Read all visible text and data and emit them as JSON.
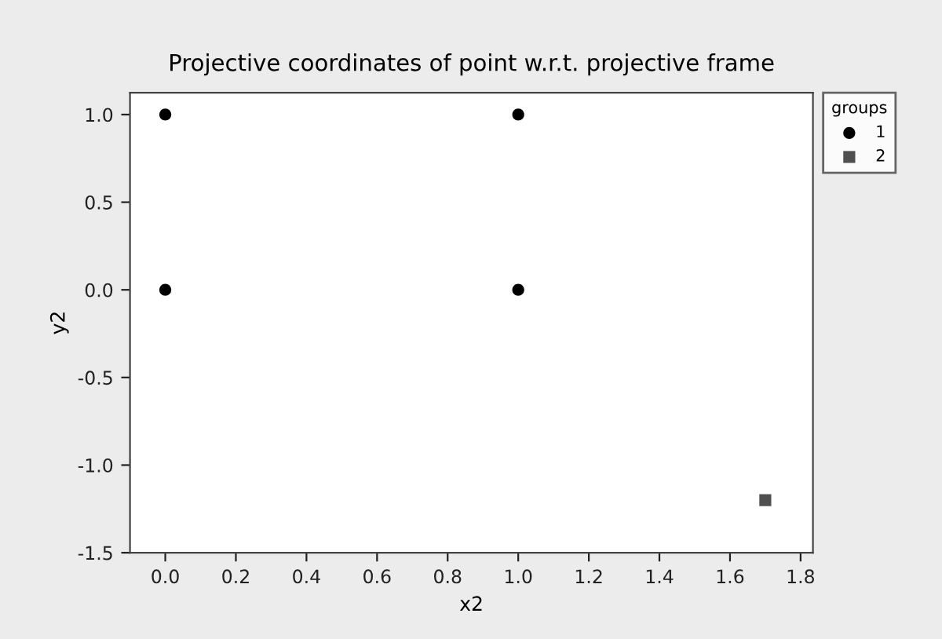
{
  "chart_data": {
    "type": "scatter",
    "title": "Projective coordinates of point w.r.t. projective frame",
    "xlabel": "x2",
    "ylabel": "y2",
    "legend_title": "groups",
    "legend": "top right",
    "series": [
      {
        "name": "1",
        "color": "#000000",
        "marker": "circle",
        "x": [
          0,
          0,
          1,
          1
        ],
        "values": [
          1,
          0,
          1,
          0
        ]
      },
      {
        "name": "2",
        "color": "#505050",
        "marker": "square",
        "x": [
          1.7
        ],
        "values": [
          -1.2
        ]
      }
    ],
    "xlim": [
      -0.1,
      1.835
    ],
    "ylim": [
      -1.5,
      1.125
    ],
    "xticks": [
      {
        "value": 0,
        "label": "0.0"
      },
      {
        "value": 0.2,
        "label": "0.2"
      },
      {
        "value": 0.4,
        "label": "0.4"
      },
      {
        "value": 0.6,
        "label": "0.6"
      },
      {
        "value": 0.8,
        "label": "0.8"
      },
      {
        "value": 1,
        "label": "1.0"
      },
      {
        "value": 1.2,
        "label": "1.2"
      },
      {
        "value": 1.4,
        "label": "1.4"
      },
      {
        "value": 1.6,
        "label": "1.6"
      },
      {
        "value": 1.8,
        "label": "1.8"
      }
    ],
    "yticks": [
      {
        "value": -1.5,
        "label": "-1.5"
      },
      {
        "value": -1,
        "label": "-1.0"
      },
      {
        "value": -0.5,
        "label": "-0.5"
      },
      {
        "value": 0,
        "label": "0.0"
      },
      {
        "value": 0.5,
        "label": "0.5"
      },
      {
        "value": 1,
        "label": "1.0"
      }
    ],
    "grid": false
  }
}
